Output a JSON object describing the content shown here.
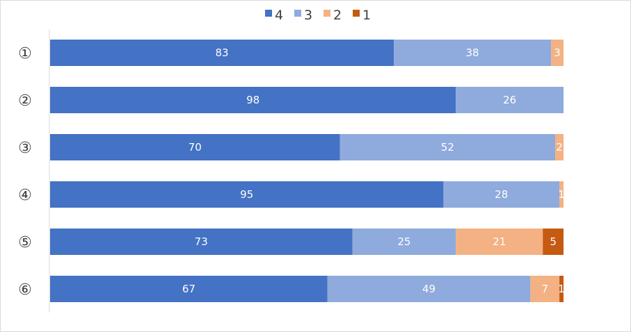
{
  "chart_data": {
    "type": "bar",
    "orientation": "horizontal",
    "stacked": "percent",
    "title": "",
    "xlabel": "",
    "ylabel": "",
    "categories": [
      "①",
      "②",
      "③",
      "④",
      "⑤",
      "⑥"
    ],
    "series": [
      {
        "name": "4",
        "color": "#4472c4",
        "values": [
          83,
          98,
          70,
          95,
          73,
          67
        ]
      },
      {
        "name": "3",
        "color": "#8faadc",
        "values": [
          38,
          26,
          52,
          28,
          25,
          49
        ]
      },
      {
        "name": "2",
        "color": "#f4b183",
        "values": [
          3,
          0,
          2,
          1,
          21,
          7
        ]
      },
      {
        "name": "1",
        "color": "#c55a11",
        "values": [
          0,
          0,
          0,
          0,
          5,
          1
        ]
      }
    ],
    "legend": "top-center",
    "grid": false
  }
}
